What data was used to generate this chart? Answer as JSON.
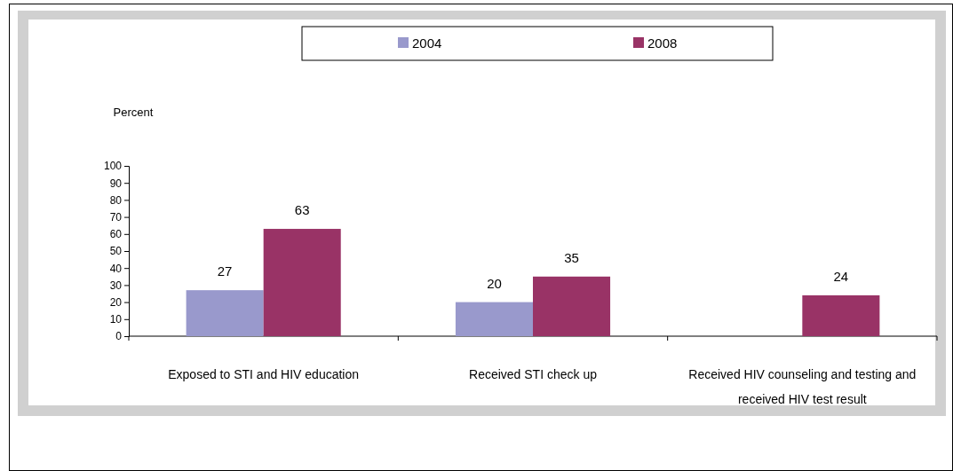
{
  "chart_data": {
    "type": "bar",
    "ylabel": "Percent",
    "categories": [
      "Exposed to STI and HIV education",
      "Received STI check up",
      "Received HIV counseling and testing and received HIV test result"
    ],
    "series": [
      {
        "name": "2004",
        "color": "#9999cc",
        "values": [
          27,
          20,
          null
        ]
      },
      {
        "name": "2008",
        "color": "#993366",
        "values": [
          63,
          35,
          24
        ]
      }
    ],
    "ylim": [
      0,
      100
    ],
    "yticks": [
      0,
      10,
      20,
      30,
      40,
      50,
      60,
      70,
      80,
      90,
      100
    ],
    "grid": false,
    "legend": "top",
    "data_labels": true
  }
}
